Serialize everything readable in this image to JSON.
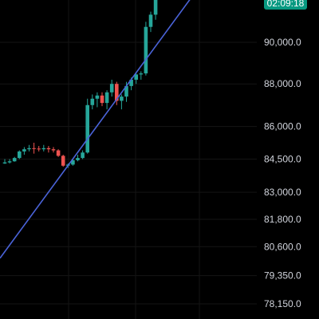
{
  "chart_data": {
    "type": "candlestick",
    "title": "",
    "xlabel": "",
    "ylabel": "",
    "y_axis_side": "right",
    "y_scale": "log",
    "grid": true,
    "y_ticks": [
      {
        "value": 90000,
        "label": "90,000.0"
      },
      {
        "value": 88000,
        "label": "88,000.0"
      },
      {
        "value": 86000,
        "label": "86,000.0"
      },
      {
        "value": 84500,
        "label": "84,500.0"
      },
      {
        "value": 83000,
        "label": "83,000.0"
      },
      {
        "value": 81800,
        "label": "81,800.0"
      },
      {
        "value": 80600,
        "label": "80,600.0"
      },
      {
        "value": 79350,
        "label": "79,350.0"
      },
      {
        "value": 78150,
        "label": "78,150.0"
      }
    ],
    "countdown_label": "02:09:18",
    "candles": [
      {
        "open": 84300,
        "high": 84500,
        "low": 84280,
        "close": 84350
      },
      {
        "open": 84350,
        "high": 84500,
        "low": 84300,
        "close": 84400
      },
      {
        "open": 84400,
        "high": 84600,
        "low": 84380,
        "close": 84550
      },
      {
        "open": 84550,
        "high": 84900,
        "low": 84500,
        "close": 84850
      },
      {
        "open": 84850,
        "high": 85050,
        "low": 84700,
        "close": 84950
      },
      {
        "open": 84950,
        "high": 85150,
        "low": 84850,
        "close": 85000
      },
      {
        "open": 85000,
        "high": 85250,
        "low": 84750,
        "close": 84980
      },
      {
        "open": 84980,
        "high": 85100,
        "low": 84850,
        "close": 84950
      },
      {
        "open": 84950,
        "high": 85150,
        "low": 84850,
        "close": 85000
      },
      {
        "open": 85000,
        "high": 85100,
        "low": 84800,
        "close": 84950
      },
      {
        "open": 84950,
        "high": 85050,
        "low": 84800,
        "close": 84900
      },
      {
        "open": 84900,
        "high": 84950,
        "low": 84600,
        "close": 84650
      },
      {
        "open": 84650,
        "high": 84700,
        "low": 84150,
        "close": 84200
      },
      {
        "open": 84200,
        "high": 84300,
        "low": 84100,
        "close": 84250
      },
      {
        "open": 84250,
        "high": 84500,
        "low": 84200,
        "close": 84450
      },
      {
        "open": 84450,
        "high": 84700,
        "low": 84400,
        "close": 84550
      },
      {
        "open": 84550,
        "high": 84900,
        "low": 84500,
        "close": 84800
      },
      {
        "open": 84800,
        "high": 87300,
        "low": 84750,
        "close": 87000
      },
      {
        "open": 87000,
        "high": 87500,
        "low": 86800,
        "close": 87300
      },
      {
        "open": 87300,
        "high": 87600,
        "low": 86900,
        "close": 87450
      },
      {
        "open": 87450,
        "high": 87600,
        "low": 86950,
        "close": 87100
      },
      {
        "open": 87100,
        "high": 87700,
        "low": 86800,
        "close": 87600
      },
      {
        "open": 87600,
        "high": 88200,
        "low": 87400,
        "close": 88000
      },
      {
        "open": 88000,
        "high": 88100,
        "low": 87000,
        "close": 87200
      },
      {
        "open": 87200,
        "high": 87500,
        "low": 86800,
        "close": 87400
      },
      {
        "open": 87400,
        "high": 88100,
        "low": 87150,
        "close": 87900
      },
      {
        "open": 87900,
        "high": 88300,
        "low": 87700,
        "close": 88200
      },
      {
        "open": 88200,
        "high": 88550,
        "low": 88000,
        "close": 88450
      },
      {
        "open": 88450,
        "high": 88600,
        "low": 88200,
        "close": 88500
      },
      {
        "open": 88500,
        "high": 91000,
        "low": 88400,
        "close": 90750
      },
      {
        "open": 90750,
        "high": 91500,
        "low": 90500,
        "close": 91350
      },
      {
        "open": 91350,
        "high": 92700,
        "low": 91100,
        "close": 92300
      }
    ],
    "trendline": {
      "start_value": 80100,
      "end_value": 92800
    },
    "colors": {
      "up": "#26a69a",
      "down": "#ef5350",
      "trendline": "#4a63d8",
      "grid": "#141414",
      "label_bg": "#089981",
      "tick_text": "#d1d4dc"
    }
  }
}
